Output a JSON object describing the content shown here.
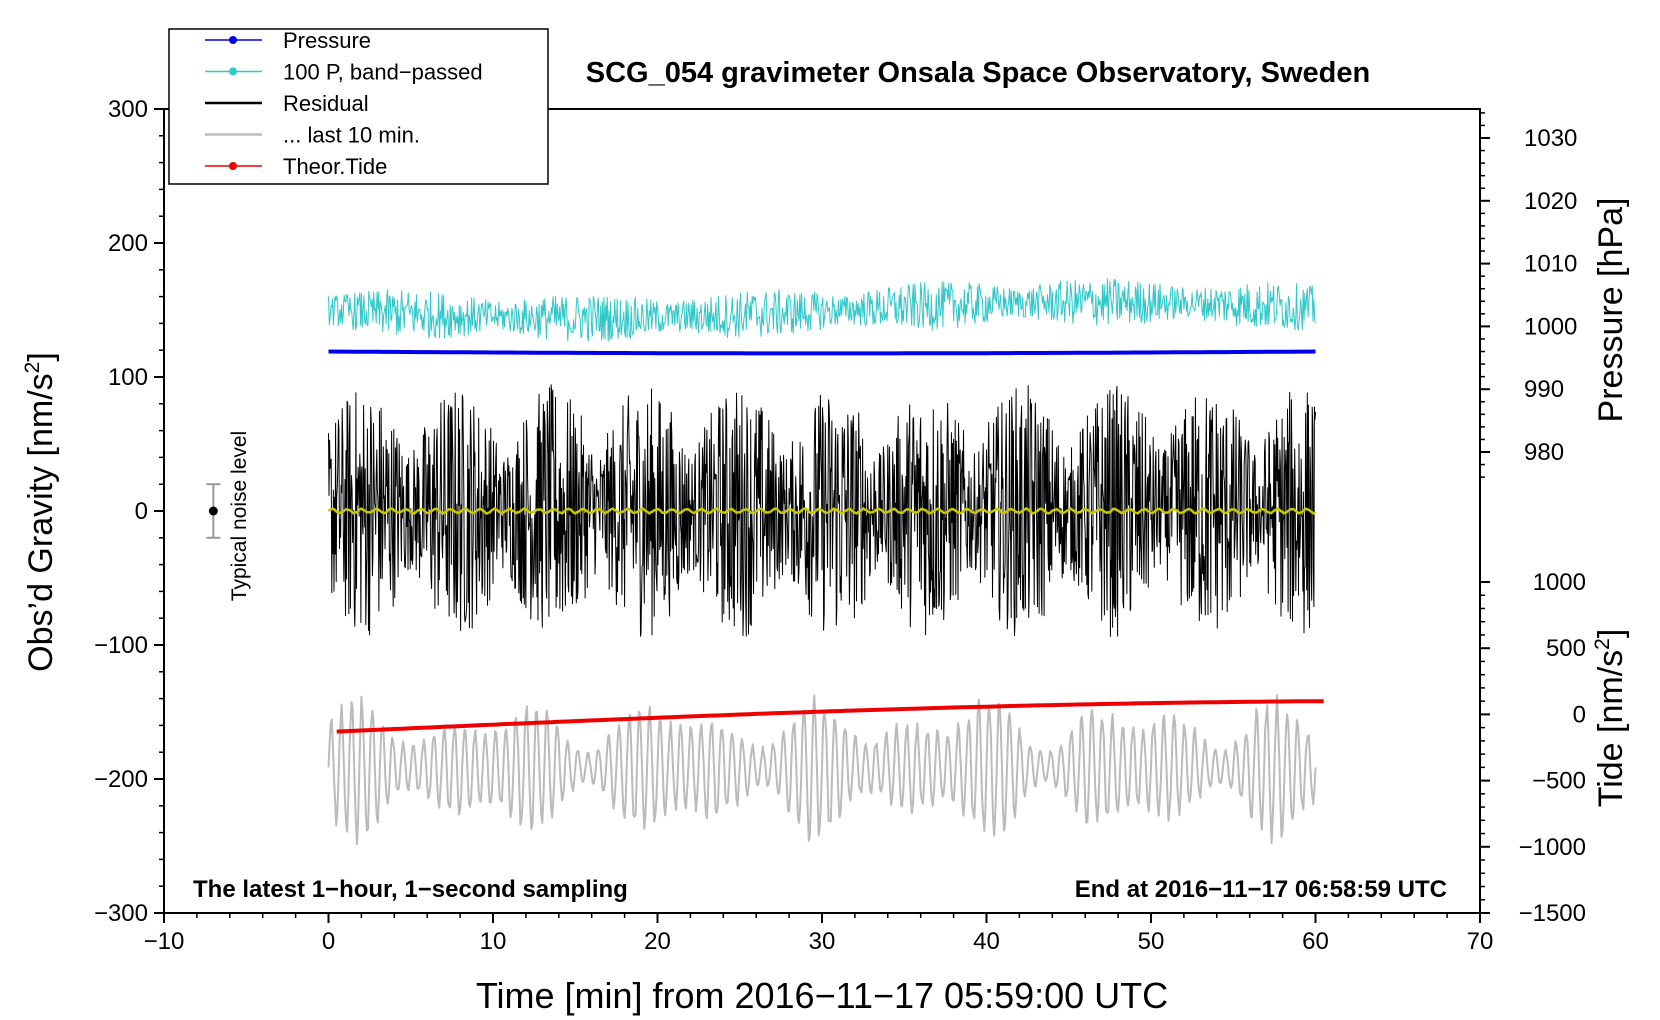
{
  "chart_data": {
    "type": "line",
    "title": "SCG_054 gravimeter Onsala Space Observatory, Sweden",
    "xlabel": "Time [min] from 2016−11−17 05:59:00 UTC",
    "ylabel": "Obs’d Gravity [nm/s",
    "ylabel_sup": "2",
    "ylabel_end": "]",
    "right_top_label": "Pressure [hPa]",
    "right_bottom_label": "Tide [nm/s",
    "right_bottom_label_sup": "2",
    "right_bottom_label_end": "]",
    "xlim": [
      -10,
      70
    ],
    "ylim": [
      -300,
      300
    ],
    "pressure_axis": {
      "range": [
        975,
        1035
      ],
      "ticks": [
        980,
        990,
        1000,
        1010,
        1020,
        1030
      ]
    },
    "tide_axis": {
      "range": [
        -1500,
        1500
      ],
      "ticks": [
        -1500,
        -1000,
        -500,
        0,
        500,
        1000
      ]
    },
    "x_ticks": [
      "−10",
      "0",
      "10",
      "20",
      "30",
      "40",
      "50",
      "60",
      "70"
    ],
    "y_ticks": [
      "300",
      "200",
      "100",
      "0",
      "−100",
      "−200",
      "−300"
    ],
    "annotation_left": "The latest 1−hour, 1−second sampling",
    "annotation_right": "End at 2016−11−17 06:58:59 UTC",
    "noise_label": "Typical noise level",
    "noise_level": {
      "x": -7,
      "center": 0,
      "half_range": 20
    },
    "legend": [
      {
        "label": "Pressure",
        "color": "#0000ee",
        "marker": true
      },
      {
        "label": "100 P, band−passed",
        "color": "#30c8c8",
        "marker": true
      },
      {
        "label": "Residual",
        "color": "#000000",
        "marker": false
      },
      {
        "label": "... last 10 min.",
        "color": "#bbbbbb",
        "marker": false
      },
      {
        "label": "Theor.Tide",
        "color": "#ee0000",
        "marker": true
      }
    ],
    "series": [
      {
        "name": "Pressure",
        "axis": "pressure",
        "color": "#0000ee",
        "x_range": [
          0,
          60
        ],
        "start": 996.0,
        "end": 996.0,
        "min": 995.7
      },
      {
        "name": "100 P, band-passed",
        "axis": "gravity",
        "color": "#30c8c8",
        "x_range": [
          0,
          60
        ],
        "center": 150,
        "amplitude": 18
      },
      {
        "name": "Residual",
        "axis": "gravity",
        "color": "#000000",
        "x_range": [
          0,
          60
        ],
        "center": 0,
        "amplitude": 95
      },
      {
        "name": "Smoothed residual",
        "axis": "gravity",
        "color": "#c8c800",
        "x_range": [
          0,
          60
        ],
        "center": 0,
        "amplitude": 2
      },
      {
        "name": "... last 10 min.",
        "axis": "tide",
        "color": "#bbbbbb",
        "x_range": [
          0,
          60
        ],
        "center": -400,
        "amplitude": 600
      },
      {
        "name": "Theor.Tide",
        "axis": "tide",
        "color": "#ee0000",
        "x_range": [
          0.5,
          60.5
        ],
        "start": -130,
        "end": 100
      }
    ]
  }
}
